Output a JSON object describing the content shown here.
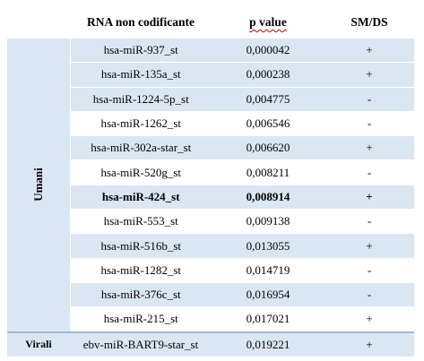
{
  "table": {
    "headers": {
      "group": "",
      "rna": "RNA non codificante",
      "pvalue": "p value",
      "smds": "SM/DS"
    },
    "groups": {
      "umani": "Umani",
      "virali": "Virali"
    },
    "rows": [
      {
        "rna": "hsa-miR-937_st",
        "p": "0,000042",
        "sign": "+"
      },
      {
        "rna": "hsa-miR-135a_st",
        "p": "0,000238",
        "sign": "+"
      },
      {
        "rna": "hsa-miR-1224-5p_st",
        "p": "0,004775",
        "sign": "-"
      },
      {
        "rna": "hsa-miR-1262_st",
        "p": "0,006546",
        "sign": "-"
      },
      {
        "rna": "hsa-miR-302a-star_st",
        "p": "0,006620",
        "sign": "+"
      },
      {
        "rna": "hsa-miR-520g_st",
        "p": "0,008211",
        "sign": "-"
      },
      {
        "rna": "hsa-miR-424_st",
        "p": "0,008914",
        "sign": "+"
      },
      {
        "rna": "hsa-miR-553_st",
        "p": "0,009138",
        "sign": "-"
      },
      {
        "rna": "hsa-miR-516b_st",
        "p": "0,013055",
        "sign": "+"
      },
      {
        "rna": "hsa-miR-1282_st",
        "p": "0,014719",
        "sign": "-"
      },
      {
        "rna": "hsa-miR-376c_st",
        "p": "0,016954",
        "sign": "-"
      },
      {
        "rna": "hsa-miR-215_st",
        "p": "0,017021",
        "sign": "+"
      },
      {
        "rna": "ebv-miR-BART9-star_st",
        "p": "0,019221",
        "sign": "+"
      }
    ]
  }
}
